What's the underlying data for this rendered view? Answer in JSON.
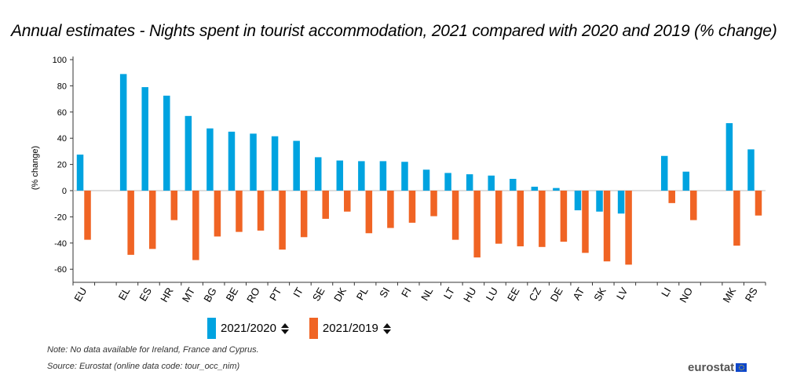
{
  "title": "Annual estimates - Nights spent in tourist accommodation, 2021 compared with 2020 and 2019 (% change)",
  "legend": [
    {
      "label": "2021/2020",
      "color": "#00a3e0",
      "icon": "sort-icon"
    },
    {
      "label": "2021/2019",
      "color": "#f06424",
      "icon": "sort-icon"
    }
  ],
  "note": "Note: No data available for Ireland, France and Cyprus.",
  "source": "Source: Eurostat (online data code: tour_occ_nim)",
  "logo": "eurostat",
  "chart_data": {
    "type": "bar",
    "ylabel": "(% change)",
    "ylim": [
      -70,
      100
    ],
    "yticks": [
      100,
      80,
      60,
      40,
      20,
      0,
      -20,
      -40,
      -60
    ],
    "categories": [
      "EU",
      "",
      "EL",
      "ES",
      "HR",
      "MT",
      "BG",
      "BE",
      "RO",
      "PT",
      "IT",
      "SE",
      "DK",
      "PL",
      "SI",
      "FI",
      "NL",
      "LT",
      "HU",
      "LU",
      "EE",
      "CZ",
      "DE",
      "AT",
      "SK",
      "LV",
      "",
      "LI",
      "NO",
      "",
      "MK",
      "RS"
    ],
    "series": [
      {
        "name": "2021/2020",
        "color": "#00a3e0",
        "values": [
          27.5,
          null,
          89,
          79,
          72.5,
          57,
          47.5,
          45,
          43.5,
          41.5,
          38,
          25.5,
          23,
          22.5,
          22.5,
          22,
          16,
          13.5,
          12.5,
          11.5,
          9,
          3,
          2,
          -15,
          -16,
          -17.5,
          null,
          26.5,
          14.5,
          null,
          51.5,
          31.5
        ]
      },
      {
        "name": "2021/2019",
        "color": "#f06424",
        "values": [
          -37.5,
          null,
          -49,
          -44.5,
          -22.5,
          -53,
          -35,
          -31.5,
          -30.5,
          -45,
          -35.5,
          -21.5,
          -16,
          -32.5,
          -28.5,
          -24.5,
          -19.5,
          -37.5,
          -51,
          -40.5,
          -42.5,
          -43,
          -39,
          -47.5,
          -54,
          -56.5,
          null,
          -9.5,
          -22.5,
          null,
          -42,
          -19
        ]
      }
    ]
  }
}
